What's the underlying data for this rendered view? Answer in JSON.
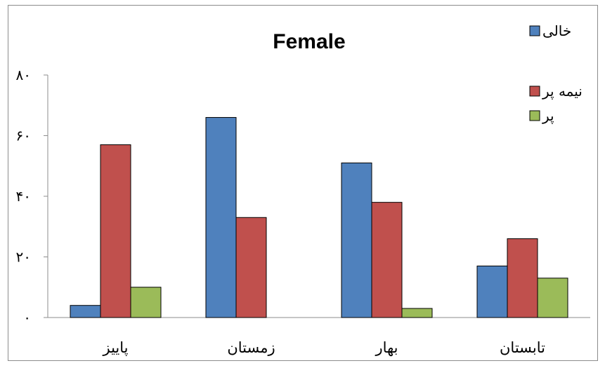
{
  "chart_data": {
    "type": "bar",
    "title": "Female",
    "categories": [
      "پاییز",
      "زمستان",
      "بهار",
      "تابستان"
    ],
    "series": [
      {
        "name": "خالی",
        "color": "#4f81bd",
        "values": [
          4,
          66,
          51,
          17
        ]
      },
      {
        "name": "نیمه پر",
        "color": "#c0504d",
        "values": [
          57,
          33,
          38,
          26
        ]
      },
      {
        "name": "پر",
        "color": "#9bbb59",
        "values": [
          10,
          0,
          3,
          13
        ]
      }
    ],
    "yticks": [
      0,
      20,
      40,
      60,
      80
    ],
    "ytick_labels": [
      "۰",
      "۲۰",
      "۴۰",
      "۶۰",
      "۸۰"
    ],
    "ylim": [
      0,
      80
    ],
    "grid": false,
    "legend_position": "top-right"
  }
}
